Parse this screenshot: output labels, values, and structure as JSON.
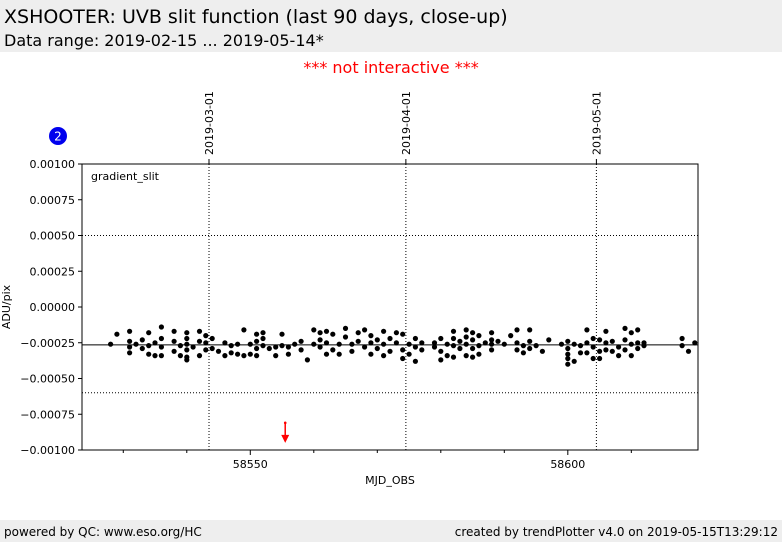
{
  "header": {
    "title": "XSHOOTER: UVB slit function (last 90 days, close-up)",
    "subtitle": "Data range: 2019-02-15 ... 2019-05-14*"
  },
  "notice": "*** not interactive ***",
  "footer": {
    "left": "powered by QC: www.eso.org/HC",
    "right": "created by trendPlotter v4.0 on 2019-05-15T13:29:12"
  },
  "colors": {
    "points": "#000000",
    "marker": "#ff0000",
    "badge": "#0000ee",
    "band": "#eeeeee"
  },
  "chart_data": {
    "type": "scatter",
    "badge": "2",
    "panel_label": "gradient_slit",
    "xlabel": "MJD_OBS",
    "ylabel": "ADU/pix",
    "xlim": [
      58523.5,
      58620.5
    ],
    "ylim": [
      -0.001,
      0.001
    ],
    "x_ticks": [
      58550,
      58600
    ],
    "x_tick_labels": [
      "58550",
      "58600"
    ],
    "x_minor_ticks": [
      58530,
      58540,
      58560,
      58570,
      58580,
      58590,
      58610
    ],
    "y_ticks": [
      -0.001,
      -0.00075,
      -0.0005,
      -0.00025,
      0.0,
      0.00025,
      0.0005,
      0.00075,
      0.001
    ],
    "y_tick_labels": [
      "−0.00100",
      "−0.00075",
      "−0.00050",
      "−0.00025",
      "0.00000",
      "0.00025",
      "0.00050",
      "0.00075",
      "0.00100"
    ],
    "date_lines": [
      {
        "x": 58543.5,
        "label": "2019-03-01"
      },
      {
        "x": 58574.5,
        "label": "2019-04-01"
      },
      {
        "x": 58604.5,
        "label": "2019-05-01"
      }
    ],
    "reference_line": -0.000265,
    "threshold_lines": [
      0.0005,
      -0.0006
    ],
    "outlier_marker": {
      "x": 58555.5,
      "y": -0.00081
    },
    "series": [
      {
        "values": [
          [
            58528,
            -0.00026
          ],
          [
            58529,
            -0.00019
          ],
          [
            58531,
            -0.00017
          ],
          [
            58531,
            -0.00024
          ],
          [
            58531,
            -0.00028
          ],
          [
            58531,
            -0.00032
          ],
          [
            58532,
            -0.00026
          ],
          [
            58533,
            -0.00023
          ],
          [
            58533,
            -0.00029
          ],
          [
            58534,
            -0.00018
          ],
          [
            58534,
            -0.00027
          ],
          [
            58534,
            -0.00033
          ],
          [
            58535,
            -0.00025
          ],
          [
            58535,
            -0.00034
          ],
          [
            58536,
            -0.00014
          ],
          [
            58536,
            -0.00022
          ],
          [
            58536,
            -0.00028
          ],
          [
            58536,
            -0.00034
          ],
          [
            58538,
            -0.00017
          ],
          [
            58538,
            -0.00024
          ],
          [
            58538,
            -0.00031
          ],
          [
            58539,
            -0.00027
          ],
          [
            58539,
            -0.00034
          ],
          [
            58540,
            -0.00018
          ],
          [
            58540,
            -0.00022
          ],
          [
            58540,
            -0.00026
          ],
          [
            58540,
            -0.0003
          ],
          [
            58540,
            -0.00035
          ],
          [
            58540,
            -0.00037
          ],
          [
            58541,
            -0.00028
          ],
          [
            58542,
            -0.00017
          ],
          [
            58542,
            -0.00024
          ],
          [
            58542,
            -0.00034
          ],
          [
            58543,
            -0.0002
          ],
          [
            58543,
            -0.00025
          ],
          [
            58543,
            -0.0003
          ],
          [
            58544,
            -0.00022
          ],
          [
            58544,
            -0.00029
          ],
          [
            58545,
            -0.00031
          ],
          [
            58546,
            -0.00025
          ],
          [
            58546,
            -0.00034
          ],
          [
            58547,
            -0.00027
          ],
          [
            58547,
            -0.00032
          ],
          [
            58548,
            -0.00026
          ],
          [
            58548,
            -0.00033
          ],
          [
            58549,
            -0.00034
          ],
          [
            58549,
            -0.00016
          ],
          [
            58550,
            -0.00026
          ],
          [
            58550,
            -0.00033
          ],
          [
            58551,
            -0.00019
          ],
          [
            58551,
            -0.00024
          ],
          [
            58551,
            -0.00029
          ],
          [
            58551,
            -0.00034
          ],
          [
            58552,
            -0.00018
          ],
          [
            58552,
            -0.00022
          ],
          [
            58552,
            -0.00027
          ],
          [
            58553,
            -0.00029
          ],
          [
            58554,
            -0.00028
          ],
          [
            58554,
            -0.00034
          ],
          [
            58555,
            -0.00019
          ],
          [
            58555,
            -0.00027
          ],
          [
            58556,
            -0.00028
          ],
          [
            58556,
            -0.00033
          ],
          [
            58557,
            -0.00026
          ],
          [
            58558,
            -0.0003
          ],
          [
            58558,
            -0.00024
          ],
          [
            58559,
            -0.00037
          ],
          [
            58560,
            -0.00016
          ],
          [
            58560,
            -0.00026
          ],
          [
            58561,
            -0.00018
          ],
          [
            58561,
            -0.00023
          ],
          [
            58561,
            -0.00028
          ],
          [
            58562,
            -0.00017
          ],
          [
            58562,
            -0.00025
          ],
          [
            58562,
            -0.00033
          ],
          [
            58563,
            -0.00019
          ],
          [
            58563,
            -0.0003
          ],
          [
            58564,
            -0.00026
          ],
          [
            58564,
            -0.00033
          ],
          [
            58565,
            -0.00015
          ],
          [
            58565,
            -0.00021
          ],
          [
            58566,
            -0.00026
          ],
          [
            58566,
            -0.00031
          ],
          [
            58567,
            -0.00018
          ],
          [
            58567,
            -0.00024
          ],
          [
            58568,
            -0.00016
          ],
          [
            58568,
            -0.00028
          ],
          [
            58569,
            -0.0002
          ],
          [
            58569,
            -0.00025
          ],
          [
            58569,
            -0.00033
          ],
          [
            58570,
            -0.00023
          ],
          [
            58570,
            -0.00029
          ],
          [
            58571,
            -0.00017
          ],
          [
            58571,
            -0.00026
          ],
          [
            58571,
            -0.00034
          ],
          [
            58572,
            -0.00022
          ],
          [
            58572,
            -0.00031
          ],
          [
            58573,
            -0.00018
          ],
          [
            58573,
            -0.00025
          ],
          [
            58574,
            -0.00019
          ],
          [
            58574,
            -0.0003
          ],
          [
            58574,
            -0.00036
          ],
          [
            58575,
            -0.00026
          ],
          [
            58575,
            -0.00033
          ],
          [
            58576,
            -0.00022
          ],
          [
            58576,
            -0.00028
          ],
          [
            58576,
            -0.00038
          ],
          [
            58577,
            -0.00025
          ],
          [
            58577,
            -0.0003
          ],
          [
            58579,
            -0.00025
          ],
          [
            58579,
            -0.00028
          ],
          [
            58580,
            -0.00022
          ],
          [
            58580,
            -0.00031
          ],
          [
            58580,
            -0.00037
          ],
          [
            58581,
            -0.00026
          ],
          [
            58581,
            -0.00034
          ],
          [
            58582,
            -0.00017
          ],
          [
            58582,
            -0.00022
          ],
          [
            58582,
            -0.00027
          ],
          [
            58582,
            -0.00035
          ],
          [
            58583,
            -0.00024
          ],
          [
            58583,
            -0.00029
          ],
          [
            58584,
            -0.00016
          ],
          [
            58584,
            -0.00021
          ],
          [
            58584,
            -0.00026
          ],
          [
            58584,
            -0.00034
          ],
          [
            58585,
            -0.00018
          ],
          [
            58585,
            -0.00023
          ],
          [
            58585,
            -0.00029
          ],
          [
            58585,
            -0.00035
          ],
          [
            58586,
            -0.0002
          ],
          [
            58586,
            -0.00027
          ],
          [
            58586,
            -0.00033
          ],
          [
            58587,
            -0.00025
          ],
          [
            58588,
            -0.00018
          ],
          [
            58588,
            -0.00023
          ],
          [
            58588,
            -0.00026
          ],
          [
            58588,
            -0.0003
          ],
          [
            58589,
            -0.00024
          ],
          [
            58590,
            -0.00026
          ],
          [
            58591,
            -0.0002
          ],
          [
            58592,
            -0.00016
          ],
          [
            58592,
            -0.00025
          ],
          [
            58592,
            -0.0003
          ],
          [
            58593,
            -0.00027
          ],
          [
            58593,
            -0.00032
          ],
          [
            58594,
            -0.00016
          ],
          [
            58594,
            -0.00024
          ],
          [
            58594,
            -0.00029
          ],
          [
            58595,
            -0.00027
          ],
          [
            58596,
            -0.00031
          ],
          [
            58597,
            -0.00023
          ],
          [
            58599,
            -0.00026
          ],
          [
            58600,
            -0.00024
          ],
          [
            58600,
            -0.00029
          ],
          [
            58600,
            -0.00033
          ],
          [
            58600,
            -0.00036
          ],
          [
            58600,
            -0.0004
          ],
          [
            58601,
            -0.00026
          ],
          [
            58601,
            -0.00038
          ],
          [
            58602,
            -0.00027
          ],
          [
            58602,
            -0.00032
          ],
          [
            58603,
            -0.00016
          ],
          [
            58603,
            -0.00025
          ],
          [
            58603,
            -0.00032
          ],
          [
            58604,
            -0.00022
          ],
          [
            58604,
            -0.00028
          ],
          [
            58604,
            -0.00036
          ],
          [
            58605,
            -0.00023
          ],
          [
            58605,
            -0.00031
          ],
          [
            58605,
            -0.00036
          ],
          [
            58606,
            -0.00017
          ],
          [
            58606,
            -0.00025
          ],
          [
            58606,
            -0.0003
          ],
          [
            58607,
            -0.00024
          ],
          [
            58607,
            -0.00031
          ],
          [
            58608,
            -0.00028
          ],
          [
            58608,
            -0.00034
          ],
          [
            58609,
            -0.00015
          ],
          [
            58609,
            -0.00023
          ],
          [
            58609,
            -0.0003
          ],
          [
            58610,
            -0.00018
          ],
          [
            58610,
            -0.00026
          ],
          [
            58610,
            -0.00034
          ],
          [
            58611,
            -0.00016
          ],
          [
            58611,
            -0.00025
          ],
          [
            58611,
            -0.00029
          ],
          [
            58612,
            -0.00025
          ],
          [
            58612,
            -0.00027
          ],
          [
            58618,
            -0.00022
          ],
          [
            58618,
            -0.00027
          ],
          [
            58619,
            -0.00031
          ],
          [
            58620,
            -0.00025
          ]
        ]
      }
    ]
  }
}
